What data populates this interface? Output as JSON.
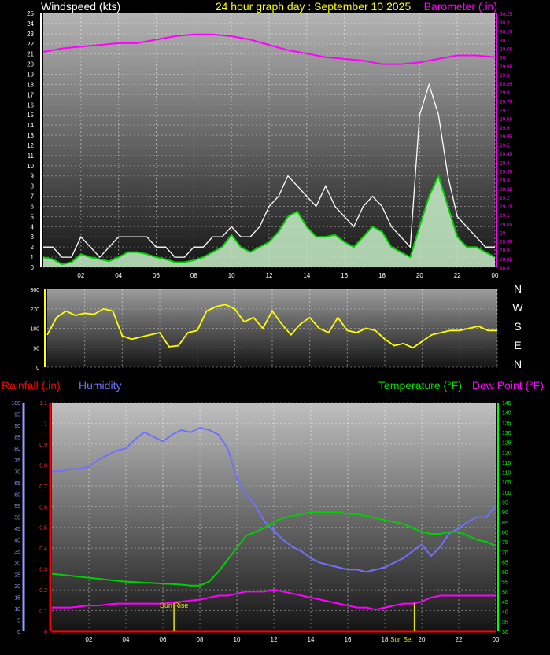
{
  "title": "24 hour graph day : September 10 2025",
  "panels": {
    "wind": {
      "left_label": "Windspeed (kts)",
      "right_label": "Barometer (.in)"
    },
    "dir": {
      "compass": [
        "N",
        "W",
        "S",
        "E",
        "N"
      ]
    },
    "temp": {
      "rain_label": "Rainfall (.in)",
      "hum_label": "Humidity",
      "temp_label": "Temperature (°F)",
      "dew_label": "Dew Point (°F)",
      "sunrise_label": "Sun Rise",
      "sunset_label": "Sun Set"
    }
  },
  "colors": {
    "wind": "#ffffff",
    "avg_wind": "#00d000",
    "wind_fill": "#c8f0c8",
    "baro": "#ff00ff",
    "dir": "#ffff00",
    "humidity": "#7070ff",
    "temperature": "#00d000",
    "dewpoint": "#ff00ff",
    "rain": "#ff0000",
    "left_axis": "#9a9aff",
    "right_axis_green": "#00ff00",
    "sun": "#e6e600"
  },
  "chart_data": [
    {
      "type": "line",
      "x_ticks": [
        "02",
        "04",
        "06",
        "08",
        "10",
        "12",
        "14",
        "16",
        "18",
        "20",
        "22",
        "00"
      ],
      "xlim": [
        0,
        24
      ],
      "ylabel": "Windspeed (kts)",
      "ylim": [
        0,
        25
      ],
      "y_ticks": [
        0,
        1,
        2,
        3,
        4,
        5,
        6,
        7,
        8,
        9,
        10,
        11,
        12,
        13,
        14,
        15,
        16,
        17,
        18,
        19,
        20,
        21,
        22,
        23,
        24,
        25
      ],
      "y2label": "Barometer (.in)",
      "y2lim": [
        28.8,
        30.25
      ],
      "y2_ticks": [
        "28.8",
        "28.85",
        "28.9",
        "28.95",
        "29",
        "29.05",
        "29.1",
        "29.15",
        "29.2",
        "29.25",
        "29.3",
        "29.35",
        "29.4",
        "29.45",
        "29.5",
        "29.55",
        "29.6",
        "29.65",
        "29.7",
        "29.75",
        "29.8",
        "29.85",
        "29.9",
        "29.95",
        "30",
        "30.05",
        "30.1",
        "30.15",
        "30.2",
        "30.25"
      ],
      "series": [
        {
          "name": "Windspeed (kts)",
          "x": [
            0,
            0.5,
            1,
            1.5,
            2,
            2.5,
            3,
            3.5,
            4,
            4.5,
            5,
            5.5,
            6,
            6.5,
            7,
            7.5,
            8,
            8.5,
            9,
            9.5,
            10,
            10.5,
            11,
            11.5,
            12,
            12.5,
            13,
            13.5,
            14,
            14.5,
            15,
            15.5,
            16,
            16.5,
            17,
            17.5,
            18,
            18.5,
            19,
            19.5,
            20,
            20.5,
            21,
            21.5,
            22,
            22.5,
            23,
            23.5,
            24
          ],
          "y": [
            2,
            2,
            1,
            1,
            3,
            2,
            1,
            2,
            3,
            3,
            3,
            3,
            2,
            2,
            1,
            1,
            2,
            2,
            3,
            3,
            4,
            3,
            3,
            4,
            6,
            7,
            9,
            8,
            7,
            6,
            8,
            6,
            5,
            4,
            6,
            7,
            6,
            4,
            3,
            2,
            15,
            18,
            15,
            9,
            5,
            4,
            3,
            2,
            2
          ]
        },
        {
          "name": "Average Windspeed",
          "x": [
            0,
            0.5,
            1,
            1.5,
            2,
            2.5,
            3,
            3.5,
            4,
            4.5,
            5,
            5.5,
            6,
            6.5,
            7,
            7.5,
            8,
            8.5,
            9,
            9.5,
            10,
            10.5,
            11,
            11.5,
            12,
            12.5,
            13,
            13.5,
            14,
            14.5,
            15,
            15.5,
            16,
            16.5,
            17,
            17.5,
            18,
            18.5,
            19,
            19.5,
            20,
            20.5,
            21,
            21.5,
            22,
            22.5,
            23,
            23.5,
            24
          ],
          "y": [
            1,
            0.8,
            0.3,
            0.5,
            1.3,
            1,
            0.8,
            0.6,
            1,
            1.5,
            1.5,
            1.3,
            1,
            0.8,
            0.5,
            0.5,
            0.7,
            1,
            1.5,
            2,
            3.2,
            2,
            1.5,
            2,
            2.5,
            3.5,
            5,
            5.5,
            4,
            3,
            3,
            3.2,
            2.5,
            2,
            3,
            4,
            3.5,
            2,
            1.5,
            1,
            4,
            7,
            9,
            6,
            3,
            2,
            2,
            1.5,
            1
          ]
        },
        {
          "name": "Barometer (.in)",
          "x": [
            0,
            1,
            2,
            3,
            4,
            5,
            6,
            7,
            8,
            9,
            10,
            11,
            12,
            13,
            14,
            15,
            16,
            17,
            18,
            19,
            20,
            21,
            22,
            23,
            24
          ],
          "y": [
            30.03,
            30.05,
            30.06,
            30.07,
            30.08,
            30.08,
            30.1,
            30.12,
            30.13,
            30.13,
            30.12,
            30.1,
            30.07,
            30.04,
            30.02,
            30.0,
            29.99,
            29.98,
            29.96,
            29.96,
            29.97,
            29.99,
            30.01,
            30.01,
            30.0
          ]
        }
      ]
    },
    {
      "type": "line",
      "x_ticks": [
        "02",
        "04",
        "06",
        "08",
        "10",
        "12",
        "14",
        "16",
        "18",
        "20",
        "22",
        "00"
      ],
      "xlim": [
        0,
        24
      ],
      "ylim": [
        0,
        360
      ],
      "y_ticks": [
        0,
        90,
        180,
        270,
        360
      ],
      "series": [
        {
          "name": "Wind Direction",
          "x": [
            0,
            0.5,
            1,
            1.5,
            2,
            2.5,
            3,
            3.5,
            4,
            4.5,
            5,
            5.5,
            6,
            6.5,
            7,
            7.5,
            8,
            8.5,
            9,
            9.5,
            10,
            10.5,
            11,
            11.5,
            12,
            12.5,
            13,
            13.5,
            14,
            14.5,
            15,
            15.5,
            16,
            16.5,
            17,
            17.5,
            18,
            18.5,
            19,
            19.5,
            20,
            20.5,
            21,
            21.5,
            22,
            22.5,
            23,
            23.5,
            24
          ],
          "y": [
            150,
            230,
            260,
            240,
            250,
            245,
            270,
            260,
            145,
            130,
            140,
            150,
            160,
            95,
            100,
            160,
            170,
            260,
            280,
            290,
            270,
            210,
            230,
            180,
            260,
            200,
            150,
            200,
            230,
            180,
            160,
            230,
            170,
            160,
            180,
            170,
            130,
            100,
            110,
            90,
            120,
            150,
            160,
            170,
            170,
            180,
            190,
            170,
            170
          ]
        }
      ]
    },
    {
      "type": "line",
      "x_ticks": [
        "02",
        "04",
        "06",
        "08",
        "10",
        "12",
        "14",
        "16",
        "18",
        "20",
        "22",
        "00"
      ],
      "xlim": [
        0,
        24
      ],
      "humidity_axis": {
        "ylim": [
          0,
          100
        ],
        "ticks": [
          0,
          5,
          10,
          15,
          20,
          25,
          30,
          35,
          40,
          45,
          50,
          55,
          60,
          65,
          70,
          75,
          80,
          85,
          90,
          95,
          100
        ]
      },
      "rain_axis": {
        "ylim": [
          0,
          1.1
        ],
        "ticks": [
          "0",
          "0.1",
          "0.2",
          "0.3",
          "0.4",
          "0.5",
          "0.6",
          "0.7",
          "0.8",
          "0.9",
          "1",
          "1.1"
        ]
      },
      "temp_axis": {
        "ylim": [
          30,
          145
        ],
        "ticks": [
          30,
          35,
          40,
          45,
          50,
          55,
          60,
          65,
          70,
          75,
          80,
          85,
          90,
          95,
          100,
          105,
          110,
          115,
          120,
          125,
          130,
          135,
          140,
          145
        ]
      },
      "sunrise": 6.6,
      "sunset": 19.6,
      "series": [
        {
          "name": "Humidity",
          "x": [
            0,
            0.5,
            1,
            1.5,
            2,
            2.5,
            3,
            3.5,
            4,
            4.5,
            5,
            5.5,
            6,
            6.5,
            7,
            7.5,
            8,
            8.5,
            9,
            9.5,
            10,
            10.5,
            11,
            11.5,
            12,
            12.5,
            13,
            13.5,
            14,
            14.5,
            15,
            15.5,
            16,
            16.5,
            17,
            17.5,
            18,
            18.5,
            19,
            19.5,
            20,
            20.5,
            21,
            21.5,
            22,
            22.5,
            23,
            23.5,
            24
          ],
          "y": [
            70,
            70,
            71,
            71,
            72,
            75,
            77,
            79,
            80,
            84,
            87,
            85,
            83,
            86,
            88,
            87,
            89,
            88,
            86,
            80,
            67,
            60,
            55,
            48,
            44,
            40,
            37,
            35,
            32,
            30,
            29,
            28,
            27,
            27,
            26,
            27,
            28,
            30,
            32,
            35,
            38,
            33,
            37,
            43,
            45,
            48,
            50,
            50,
            55
          ]
        },
        {
          "name": "Temperature",
          "x": [
            0,
            0.5,
            1,
            1.5,
            2,
            2.5,
            3,
            3.5,
            4,
            4.5,
            5,
            5.5,
            6,
            6.5,
            7,
            7.5,
            8,
            8.5,
            9,
            9.5,
            10,
            10.5,
            11,
            11.5,
            12,
            12.5,
            13,
            13.5,
            14,
            14.5,
            15,
            15.5,
            16,
            16.5,
            17,
            17.5,
            18,
            18.5,
            19,
            19.5,
            20,
            20.5,
            21,
            21.5,
            22,
            22.5,
            23,
            23.5,
            24
          ],
          "y": [
            59,
            58.5,
            58,
            57.5,
            57,
            56.5,
            56,
            55.5,
            55,
            54.8,
            54.5,
            54.3,
            54,
            53.8,
            53.5,
            53,
            53,
            55,
            60,
            66,
            72,
            78,
            80,
            82,
            85,
            87,
            88,
            89,
            90,
            90,
            90,
            90,
            89,
            89,
            88,
            87,
            86,
            85,
            84,
            82,
            80,
            79,
            79,
            80,
            80,
            78,
            76,
            75,
            73
          ]
        },
        {
          "name": "Dew Point",
          "x": [
            0,
            0.5,
            1,
            1.5,
            2,
            2.5,
            3,
            3.5,
            4,
            4.5,
            5,
            5.5,
            6,
            6.5,
            7,
            7.5,
            8,
            8.5,
            9,
            9.5,
            10,
            10.5,
            11,
            11.5,
            12,
            12.5,
            13,
            13.5,
            14,
            14.5,
            15,
            15.5,
            16,
            16.5,
            17,
            17.5,
            18,
            18.5,
            19,
            19.5,
            20,
            20.5,
            21,
            21.5,
            22,
            22.5,
            23,
            23.5,
            24
          ],
          "y": [
            42,
            42,
            42,
            42.5,
            43,
            43,
            43.5,
            44,
            44,
            44,
            44,
            44,
            44,
            44.5,
            45,
            45.5,
            46,
            47,
            48,
            48,
            49,
            50,
            50,
            50,
            51,
            50,
            49,
            48,
            47,
            46,
            45,
            44,
            43,
            42,
            42,
            41,
            42,
            43,
            44,
            44,
            45,
            47,
            48,
            48,
            48,
            48,
            48,
            48,
            48
          ]
        },
        {
          "name": "Rainfall",
          "x": [
            0,
            24
          ],
          "y": [
            0,
            0
          ]
        }
      ]
    }
  ]
}
